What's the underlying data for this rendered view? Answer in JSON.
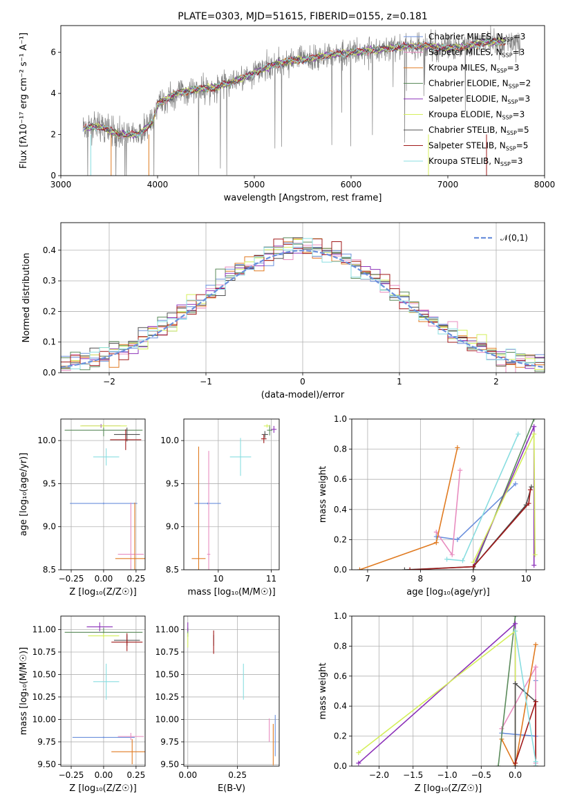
{
  "colors": {
    "Chabrier MILES": "#6a8fdc",
    "Salpeter MILES": "#e88cbf",
    "Kroupa MILES": "#e07a20",
    "Chabrier ELODIE": "#5a8a5a",
    "Salpeter ELODIE": "#8b2fb8",
    "Kroupa ELODIE": "#d4ef5a",
    "Chabrier STELIB": "#505050",
    "Salpeter STELIB": "#a01818",
    "Kroupa STELIB": "#88dde0"
  },
  "chart_data": [
    {
      "id": "spectrum",
      "type": "line",
      "title": "PLATE=0303, MJD=51615, FIBERID=0155, z=0.181",
      "xlabel": "wavelength [Angstrom, rest frame]",
      "ylabel": "Flux [fλ10⁻¹⁷ erg cm⁻² s⁻¹ A⁻¹]",
      "xlim": [
        3000,
        8000
      ],
      "ylim": [
        0,
        7.3
      ],
      "xticks": [
        "3000",
        "4000",
        "5000",
        "6000",
        "7000",
        "8000"
      ],
      "yticks": [
        "0",
        "2",
        "4",
        "6"
      ],
      "legend_position": "right",
      "series": [
        {
          "name": "Chabrier MILES, N",
          "sub": "SSP",
          "suffix": "=3"
        },
        {
          "name": "Salpeter MILES, N",
          "sub": "SSP",
          "suffix": "=3"
        },
        {
          "name": "Kroupa MILES, N",
          "sub": "SSP",
          "suffix": "=3"
        },
        {
          "name": "Chabrier ELODIE, N",
          "sub": "SSP",
          "suffix": "=2"
        },
        {
          "name": "Salpeter ELODIE, N",
          "sub": "SSP",
          "suffix": "=3"
        },
        {
          "name": "Kroupa ELODIE, N",
          "sub": "SSP",
          "suffix": "=3"
        },
        {
          "name": "Chabrier STELIB, N",
          "sub": "SSP",
          "suffix": "=5"
        },
        {
          "name": "Salpeter STELIB, N",
          "sub": "SSP",
          "suffix": "=5"
        },
        {
          "name": "Kroupa STELIB, N",
          "sub": "SSP",
          "suffix": "=3"
        }
      ],
      "continuum": {
        "x": [
          3230,
          3400,
          3600,
          3800,
          3950,
          4000,
          4200,
          4400,
          4600,
          4800,
          5000,
          5200,
          5400,
          5600,
          5800,
          6000,
          6200,
          6400,
          6600,
          6800,
          7000,
          7200,
          7400,
          7700
        ],
        "y": [
          2.3,
          2.4,
          2.0,
          2.0,
          2.6,
          3.5,
          4.0,
          4.2,
          4.3,
          4.6,
          5.0,
          5.4,
          5.6,
          5.7,
          5.9,
          6.0,
          6.1,
          6.2,
          6.3,
          6.3,
          6.2,
          6.3,
          6.5,
          6.5
        ]
      }
    },
    {
      "id": "residuals",
      "type": "histogram",
      "xlabel": "(data-model)/error",
      "ylabel": "Normed distribution",
      "xlim": [
        -2.5,
        2.5
      ],
      "ylim": [
        0,
        0.49
      ],
      "xticks": [
        "−2",
        "−1",
        "0",
        "1",
        "2"
      ],
      "yticks": [
        "0.0",
        "0.1",
        "0.2",
        "0.3",
        "0.4"
      ],
      "legend": "𝒩(0,1)",
      "legend_position": "top-right",
      "bin_width": 0.1,
      "normal_curve": {
        "mu": 0,
        "sigma": 1
      }
    },
    {
      "id": "age-vs-z",
      "type": "errorbar",
      "xlabel": "Z [log₁₀(Z/Z☉)]",
      "ylabel": "age  [log₁₀(age/yr)]",
      "xlim": [
        -0.33,
        0.32
      ],
      "ylim": [
        8.5,
        10.25
      ],
      "xticks": [
        "−0.25",
        "0.00",
        "0.25"
      ],
      "yticks": [
        "8.5",
        "9.0",
        "9.5",
        "10.0"
      ],
      "points": [
        {
          "model": "Chabrier MILES",
          "x": 0.0,
          "y": 9.27,
          "xerr": 0.26,
          "yerr": 0.01
        },
        {
          "model": "Salpeter MILES",
          "x": 0.21,
          "y": 8.68,
          "xerr": 0.1,
          "yerr": 0.6
        },
        {
          "model": "Kroupa MILES",
          "x": 0.24,
          "y": 8.63,
          "xerr": 0.15,
          "yerr": 0.65
        },
        {
          "model": "Chabrier ELODIE",
          "x": 0.0,
          "y": 10.12,
          "xerr": 0.3,
          "yerr": 0.07
        },
        {
          "model": "Salpeter ELODIE",
          "x": -0.02,
          "y": 10.17,
          "xerr": 0.15,
          "yerr": 0.02
        },
        {
          "model": "Kroupa ELODIE",
          "x": 0.0,
          "y": 10.17,
          "xerr": 0.18,
          "yerr": 0.02
        },
        {
          "model": "Chabrier STELIB",
          "x": 0.18,
          "y": 10.07,
          "xerr": 0.1,
          "yerr": 0.08
        },
        {
          "model": "Salpeter STELIB",
          "x": 0.17,
          "y": 10.01,
          "xerr": 0.12,
          "yerr": 0.12
        },
        {
          "model": "Kroupa STELIB",
          "x": 0.02,
          "y": 9.81,
          "xerr": 0.1,
          "yerr": 0.1
        }
      ]
    },
    {
      "id": "age-vs-mass",
      "type": "errorbar",
      "xlabel": "mass [log₁₀(M/M☉)]",
      "xlim": [
        9.35,
        11.15
      ],
      "ylim": [
        8.5,
        10.25
      ],
      "xticks": [
        "10",
        "11"
      ],
      "yticks": [
        "8.5",
        "9.0",
        "9.5",
        "10.0"
      ],
      "points": [
        {
          "model": "Chabrier MILES",
          "x": 9.8,
          "y": 9.27,
          "xerr": 0.25,
          "yerr": 0.01
        },
        {
          "model": "Salpeter MILES",
          "x": 9.82,
          "y": 8.68,
          "xerr": 0.03,
          "yerr": 1.2
        },
        {
          "model": "Kroupa MILES",
          "x": 9.63,
          "y": 8.63,
          "xerr": 0.13,
          "yerr": 1.3
        },
        {
          "model": "Chabrier ELODIE",
          "x": 10.97,
          "y": 10.12,
          "xerr": 0.05,
          "yerr": 0.06
        },
        {
          "model": "Salpeter ELODIE",
          "x": 11.05,
          "y": 10.13,
          "xerr": 0.05,
          "yerr": 0.04
        },
        {
          "model": "Kroupa ELODIE",
          "x": 10.92,
          "y": 10.17,
          "xerr": 0.06,
          "yerr": 0.02
        },
        {
          "model": "Chabrier STELIB",
          "x": 10.88,
          "y": 10.07,
          "xerr": 0.06,
          "yerr": 0.04
        },
        {
          "model": "Salpeter STELIB",
          "x": 10.86,
          "y": 10.02,
          "xerr": 0.05,
          "yerr": 0.05
        },
        {
          "model": "Kroupa STELIB",
          "x": 10.42,
          "y": 9.81,
          "xerr": 0.2,
          "yerr": 0.22
        }
      ]
    },
    {
      "id": "mass-weight-vs-age",
      "type": "line",
      "xlabel": "age  [log₁₀(age/yr)]",
      "ylabel": "mass weight",
      "xlim": [
        6.7,
        10.35
      ],
      "ylim": [
        0,
        1
      ],
      "xticks": [
        "7",
        "8",
        "9",
        "10"
      ],
      "yticks": [
        "0.0",
        "0.2",
        "0.4",
        "0.6",
        "0.8",
        "1.0"
      ],
      "series": [
        {
          "model": "Chabrier MILES",
          "x": [
            8.3,
            8.7,
            9.8
          ],
          "y": [
            0.22,
            0.2,
            0.57
          ]
        },
        {
          "model": "Salpeter MILES",
          "x": [
            8.3,
            8.6,
            8.75
          ],
          "y": [
            0.25,
            0.1,
            0.66
          ]
        },
        {
          "model": "Kroupa MILES",
          "x": [
            6.85,
            8.3,
            8.7
          ],
          "y": [
            0.0,
            0.18,
            0.81
          ]
        },
        {
          "model": "Chabrier ELODIE",
          "x": [
            9.0,
            10.15
          ],
          "y": [
            0.0,
            1.0
          ]
        },
        {
          "model": "Salpeter ELODIE",
          "x": [
            9.0,
            10.15,
            10.15
          ],
          "y": [
            0.02,
            0.95,
            0.03
          ]
        },
        {
          "model": "Kroupa ELODIE",
          "x": [
            9.0,
            10.15,
            10.17
          ],
          "y": [
            0.05,
            0.9,
            0.1
          ]
        },
        {
          "model": "Chabrier STELIB",
          "x": [
            7.7,
            9.0,
            10.0,
            10.1
          ],
          "y": [
            0.0,
            0.02,
            0.43,
            0.55
          ]
        },
        {
          "model": "Salpeter STELIB",
          "x": [
            7.8,
            9.0,
            10.05,
            10.08
          ],
          "y": [
            0.0,
            0.02,
            0.44,
            0.53
          ]
        },
        {
          "model": "Kroupa STELIB",
          "x": [
            8.5,
            8.8,
            9.85
          ],
          "y": [
            0.07,
            0.06,
            0.9
          ]
        }
      ]
    },
    {
      "id": "mass-vs-z",
      "type": "errorbar",
      "xlabel": "Z [log₁₀(Z/Z☉)]",
      "ylabel": "mass [log₁₀(M/M☉)]",
      "xlim": [
        -0.33,
        0.32
      ],
      "ylim": [
        9.48,
        11.15
      ],
      "xticks": [
        "−0.25",
        "0.00",
        "0.25"
      ],
      "yticks": [
        "9.50",
        "9.75",
        "10.00",
        "10.25",
        "10.50",
        "10.75",
        "11.00"
      ],
      "points": [
        {
          "model": "Chabrier MILES",
          "x": 0.0,
          "y": 9.8,
          "xerr": 0.24,
          "yerr": 0.01
        },
        {
          "model": "Salpeter MILES",
          "x": 0.21,
          "y": 9.81,
          "xerr": 0.1,
          "yerr": 0.04
        },
        {
          "model": "Kroupa MILES",
          "x": 0.22,
          "y": 9.64,
          "xerr": 0.16,
          "yerr": 0.14
        },
        {
          "model": "Chabrier ELODIE",
          "x": 0.0,
          "y": 10.97,
          "xerr": 0.3,
          "yerr": 0.05
        },
        {
          "model": "Salpeter ELODIE",
          "x": -0.03,
          "y": 11.03,
          "xerr": 0.1,
          "yerr": 0.05
        },
        {
          "model": "Kroupa ELODIE",
          "x": 0.0,
          "y": 10.93,
          "xerr": 0.12,
          "yerr": 0.03
        },
        {
          "model": "Chabrier STELIB",
          "x": 0.18,
          "y": 10.88,
          "xerr": 0.1,
          "yerr": 0.06
        },
        {
          "model": "Salpeter STELIB",
          "x": 0.18,
          "y": 10.86,
          "xerr": 0.12,
          "yerr": 0.1
        },
        {
          "model": "Kroupa STELIB",
          "x": 0.02,
          "y": 10.42,
          "xerr": 0.1,
          "yerr": 0.2
        }
      ]
    },
    {
      "id": "mass-vs-ebv",
      "type": "errorbar",
      "xlabel": "E(B-V)",
      "xlim": [
        -0.02,
        0.46
      ],
      "ylim": [
        9.48,
        11.15
      ],
      "xticks": [
        "0.00",
        "0.25"
      ],
      "yticks": [
        "9.50",
        "9.75",
        "10.00",
        "10.25",
        "10.50",
        "10.75",
        "11.00"
      ],
      "points": [
        {
          "model": "Chabrier MILES",
          "x": 0.44,
          "y": 9.82,
          "xerr": 0.0,
          "yerr": 0.23
        },
        {
          "model": "Salpeter MILES",
          "x": 0.41,
          "y": 9.88,
          "xerr": 0.0,
          "yerr": 0.13
        },
        {
          "model": "Kroupa MILES",
          "x": 0.43,
          "y": 9.72,
          "xerr": 0.0,
          "yerr": 0.23
        },
        {
          "model": "Chabrier ELODIE",
          "x": 0.0,
          "y": 10.97,
          "xerr": 0.0,
          "yerr": 0.05
        },
        {
          "model": "Salpeter ELODIE",
          "x": 0.0,
          "y": 11.03,
          "xerr": 0.0,
          "yerr": 0.05
        },
        {
          "model": "Kroupa ELODIE",
          "x": 0.0,
          "y": 10.88,
          "xerr": 0.0,
          "yerr": 0.08
        },
        {
          "model": "Chabrier STELIB",
          "x": 0.13,
          "y": 10.88,
          "xerr": 0.0,
          "yerr": 0.06
        },
        {
          "model": "Salpeter STELIB",
          "x": 0.13,
          "y": 10.86,
          "xerr": 0.0,
          "yerr": 0.13
        },
        {
          "model": "Kroupa STELIB",
          "x": 0.28,
          "y": 10.42,
          "xerr": 0.0,
          "yerr": 0.2
        }
      ]
    },
    {
      "id": "mass-weight-vs-z",
      "type": "line",
      "xlabel": "Z [log₁₀(Z/Z☉)]",
      "ylabel": "mass weight",
      "xlim": [
        -2.4,
        0.43
      ],
      "ylim": [
        0,
        1
      ],
      "xticks": [
        "−2.0",
        "−1.5",
        "−1.0",
        "−0.5",
        "0.0"
      ],
      "yticks": [
        "0.0",
        "0.2",
        "0.4",
        "0.6",
        "0.8",
        "1.0"
      ],
      "series": [
        {
          "model": "Chabrier MILES",
          "x": [
            -0.2,
            0.3,
            0.3
          ],
          "y": [
            0.22,
            0.2,
            0.57
          ]
        },
        {
          "model": "Salpeter MILES",
          "x": [
            -0.2,
            0.3,
            0.3
          ],
          "y": [
            0.25,
            0.66,
            0.02
          ]
        },
        {
          "model": "Kroupa MILES",
          "x": [
            -0.2,
            0.0,
            0.3
          ],
          "y": [
            0.18,
            0.0,
            0.81
          ]
        },
        {
          "model": "Chabrier ELODIE",
          "x": [
            -0.25,
            0.0
          ],
          "y": [
            0.0,
            1.0
          ]
        },
        {
          "model": "Salpeter ELODIE",
          "x": [
            -2.3,
            0.0,
            0.0
          ],
          "y": [
            0.02,
            0.95,
            0.0
          ]
        },
        {
          "model": "Kroupa ELODIE",
          "x": [
            -2.3,
            0.0,
            0.0
          ],
          "y": [
            0.09,
            0.9,
            0.0
          ]
        },
        {
          "model": "Chabrier STELIB",
          "x": [
            0.0,
            0.0,
            0.3,
            0.3
          ],
          "y": [
            0.0,
            0.55,
            0.43,
            0.0
          ]
        },
        {
          "model": "Salpeter STELIB",
          "x": [
            0.0,
            0.3,
            0.3
          ],
          "y": [
            0.02,
            0.43,
            0.0
          ]
        },
        {
          "model": "Kroupa STELIB",
          "x": [
            0.0,
            0.3,
            0.3
          ],
          "y": [
            0.9,
            0.03,
            0.0
          ]
        }
      ]
    }
  ]
}
